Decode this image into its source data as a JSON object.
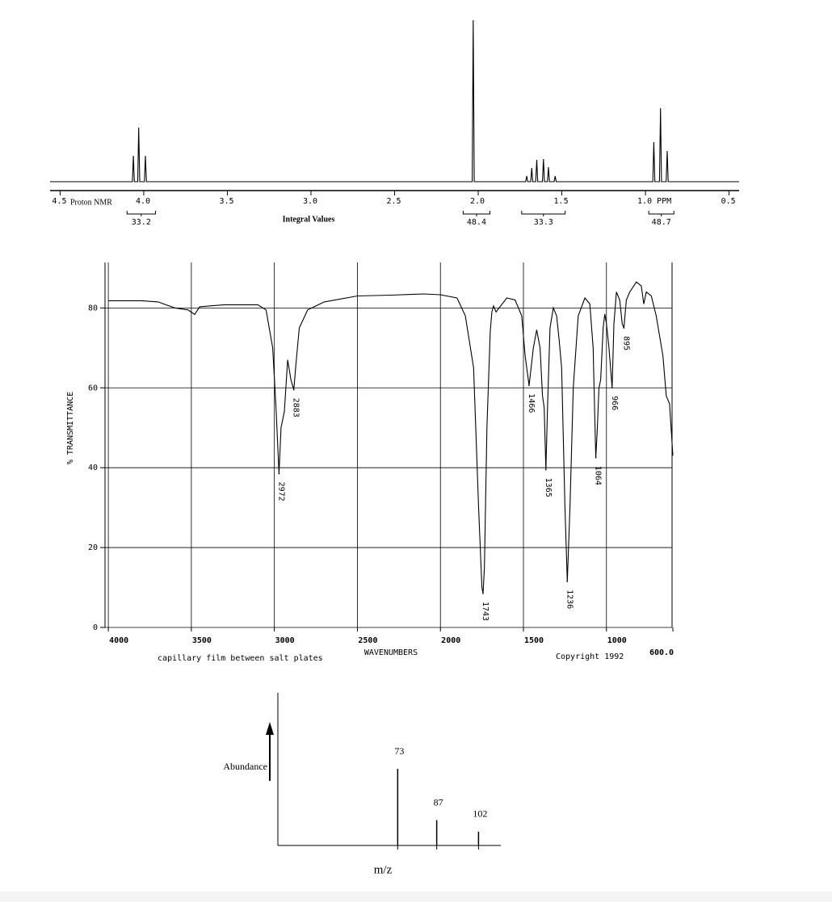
{
  "chart_data": [
    {
      "type": "line",
      "annotation": "Proton NMR",
      "integral_title": "Integral Values",
      "x": [
        4.56,
        4.068,
        4.062,
        4.056,
        4.036,
        4.03,
        4.024,
        3.996,
        3.99,
        3.984,
        2.036,
        2.03,
        2.024,
        1.716,
        1.71,
        1.704,
        1.686,
        1.68,
        1.674,
        1.656,
        1.65,
        1.644,
        1.616,
        1.61,
        1.604,
        1.586,
        1.58,
        1.574,
        1.546,
        1.54,
        1.534,
        0.956,
        0.95,
        0.944,
        0.916,
        0.91,
        0.904,
        0.876,
        0.87,
        0.864,
        0.44
      ],
      "values": [
        0,
        0,
        16,
        0,
        0,
        33.5,
        0,
        0,
        16,
        0,
        0,
        100,
        0,
        0,
        3.5,
        0,
        0,
        8.5,
        0,
        0,
        13.5,
        0,
        0,
        14,
        0,
        0,
        9,
        0,
        0,
        3.5,
        0,
        0,
        24.5,
        0,
        0,
        45.5,
        0,
        0,
        19,
        0,
        0
      ],
      "xlim": [
        4.56,
        0.44
      ],
      "ylim": [
        0,
        100
      ],
      "xticks": [
        4.5,
        {
          "value": 4,
          "label": "4.0"
        },
        3.5,
        {
          "value": 3,
          "label": "3.0"
        },
        2.5,
        {
          "value": 2,
          "label": "2.0"
        },
        1.5,
        {
          "value": 1,
          "label": "1.0 PPM"
        },
        0.5
      ],
      "integrals": [
        {
          "from": 4.1,
          "to": 3.93,
          "value": 33.2
        },
        {
          "from": 2.09,
          "to": 1.93,
          "value": 48.4
        },
        {
          "from": 1.74,
          "to": 1.48,
          "value": 33.3
        },
        {
          "from": 0.98,
          "to": 0.83,
          "value": 48.7
        }
      ],
      "color": "#000000"
    },
    {
      "type": "line",
      "ylabel": "% TRANSMITTANCE",
      "xlabel": "WAVENUMBERS",
      "note": "capillary film between salt plates",
      "copyright": "Copyright 1992",
      "x": [
        4000,
        3800,
        3700,
        3600,
        3520,
        3480,
        3450,
        3300,
        3100,
        3050,
        3010,
        2990,
        2972,
        2960,
        2940,
        2920,
        2900,
        2883,
        2870,
        2850,
        2800,
        2700,
        2500,
        2300,
        2100,
        2000,
        1900,
        1850,
        1800,
        1770,
        1750,
        1743,
        1735,
        1720,
        1700,
        1690,
        1680,
        1665,
        1600,
        1550,
        1510,
        1490,
        1466,
        1440,
        1420,
        1400,
        1385,
        1375,
        1365,
        1355,
        1340,
        1320,
        1300,
        1285,
        1270,
        1250,
        1236,
        1220,
        1200,
        1170,
        1130,
        1100,
        1080,
        1070,
        1064,
        1055,
        1045,
        1035,
        1020,
        1010,
        1000,
        985,
        966,
        955,
        940,
        920,
        905,
        895,
        880,
        860,
        820,
        790,
        775,
        760,
        730,
        700,
        660,
        640,
        620,
        600
      ],
      "values": [
        81.8,
        81.8,
        81.5,
        80,
        79.5,
        78.4,
        80.3,
        80.8,
        80.8,
        79.5,
        70,
        55,
        38.5,
        50,
        54,
        67,
        62,
        59.5,
        66,
        75,
        79.5,
        81.5,
        83,
        83.2,
        83.5,
        83.3,
        82.5,
        78,
        65,
        30,
        10,
        8.5,
        15,
        50,
        74,
        79,
        80.5,
        79,
        82.5,
        82,
        78,
        68,
        60.6,
        70,
        74.5,
        70,
        58,
        55,
        39.5,
        55,
        75,
        80,
        78,
        72,
        65,
        30,
        11.5,
        30,
        60,
        78,
        82.5,
        81,
        70,
        52,
        42.5,
        50,
        60,
        62,
        75,
        78.5,
        76,
        70,
        60,
        76,
        84,
        82,
        76,
        75,
        82,
        84,
        86.5,
        85.5,
        81,
        84,
        83,
        78,
        68,
        58,
        56,
        43
      ],
      "xlim": [
        4020,
        600
      ],
      "ylim": [
        0,
        92
      ],
      "xticks": [
        4000,
        3500,
        3000,
        2500,
        2000,
        1500,
        1000,
        {
          "value": 600,
          "label": "600.0"
        }
      ],
      "yticks": [
        0,
        20,
        40,
        60,
        80
      ],
      "grid": true,
      "peaks": [
        {
          "x": 2972,
          "y": 38.5
        },
        {
          "x": 2883,
          "y": 59.5
        },
        {
          "x": 1743,
          "y": 8.5
        },
        {
          "x": 1466,
          "y": 60.6
        },
        {
          "x": 1365,
          "y": 39.5
        },
        {
          "x": 1236,
          "y": 11.5
        },
        {
          "x": 1064,
          "y": 42.5
        },
        {
          "x": 966,
          "y": 60
        },
        {
          "x": 895,
          "y": 75
        }
      ],
      "color": "#000000"
    },
    {
      "type": "bar",
      "ylabel": "Abundance",
      "xlabel": "m/z",
      "x": [
        73,
        87,
        102
      ],
      "values": [
        100,
        33,
        18
      ],
      "xlim": [
        30,
        110
      ],
      "ylim": [
        0,
        100
      ],
      "color": "#000000"
    }
  ]
}
